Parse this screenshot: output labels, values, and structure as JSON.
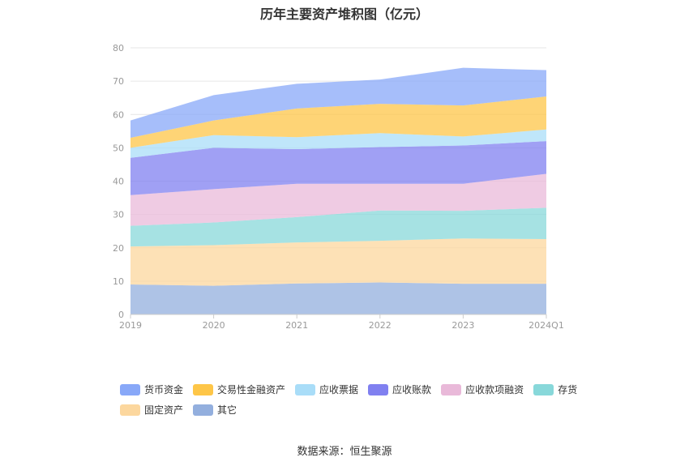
{
  "chart_data": {
    "type": "area",
    "stacked": true,
    "title": "历年主要资产堆积图（亿元）",
    "categories": [
      "2019",
      "2020",
      "2021",
      "2022",
      "2023",
      "2024Q1"
    ],
    "ylim": [
      0,
      80
    ],
    "yticks": [
      0,
      10,
      20,
      30,
      40,
      50,
      60,
      70,
      80
    ],
    "grid": true,
    "legend_position": "bottom",
    "series": [
      {
        "name": "其它",
        "color": "#93afde",
        "values": [
          9.0,
          8.6,
          9.3,
          9.6,
          9.2,
          9.2
        ]
      },
      {
        "name": "固定资产",
        "color": "#fcd79e",
        "values": [
          11.4,
          12.2,
          12.3,
          12.5,
          13.6,
          13.4
        ]
      },
      {
        "name": "存货",
        "color": "#88d8da",
        "values": [
          6.2,
          6.8,
          7.6,
          9.1,
          8.3,
          9.4
        ]
      },
      {
        "name": "应收款项融资",
        "color": "#e9b9d9",
        "values": [
          9.2,
          10.0,
          10.0,
          8.0,
          8.1,
          10.2
        ]
      },
      {
        "name": "应收账款",
        "color": "#8080f0",
        "values": [
          11.2,
          12.4,
          10.4,
          11.0,
          11.5,
          9.8
        ]
      },
      {
        "name": "应收票据",
        "color": "#a9ddf8",
        "values": [
          3.0,
          3.8,
          3.6,
          4.2,
          2.7,
          3.5
        ]
      },
      {
        "name": "交易性金融资产",
        "color": "#fec648",
        "values": [
          3.0,
          4.4,
          8.6,
          8.8,
          9.3,
          9.9
        ]
      },
      {
        "name": "货币资金",
        "color": "#88a8f8",
        "values": [
          5.2,
          7.6,
          7.4,
          7.3,
          11.3,
          7.9
        ]
      }
    ],
    "legend_order": [
      "货币资金",
      "交易性金融资产",
      "应收票据",
      "应收账款",
      "应收款项融资",
      "存货",
      "固定资产",
      "其它"
    ]
  },
  "footer": {
    "source": "数据来源：恒生聚源"
  }
}
